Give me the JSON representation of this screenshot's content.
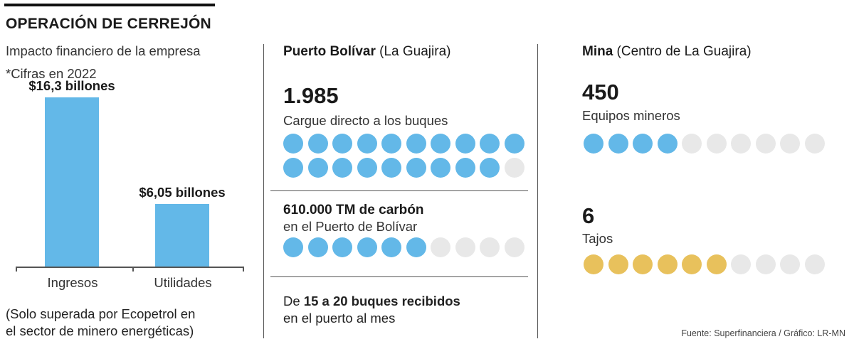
{
  "header": {
    "title": "OPERACIÓN DE CERREJÓN",
    "subtitle": "Impacto financiero de la empresa",
    "subtitle2": "*Cifras en 2022"
  },
  "chart_data": {
    "type": "bar",
    "categories": [
      "Ingresos",
      "Utilidades"
    ],
    "values": [
      16.3,
      6.05
    ],
    "data_labels": [
      "$16,3 billones",
      "$6,05 billones"
    ],
    "units": "billones",
    "title": "",
    "xlabel": "",
    "ylabel": "",
    "ylim": [
      0,
      17.5
    ],
    "grid": false,
    "bar_color": "#63b8e8",
    "note": "(Solo superada por Ecopetrol en el sector de minero energéticas)"
  },
  "note": {
    "line1": "(Solo superada por Ecopetrol en",
    "line2": "el sector de minero energéticas)"
  },
  "puerto": {
    "heading_bold": "Puerto Bolívar",
    "heading_rest": " (La Guajira)",
    "stat1_value": "1.985",
    "stat1_label": "Cargue directo a los buques",
    "stat1_dots_total": 20,
    "stat1_dots_filled": 19,
    "stat2_value": "610.000 TM de carbón",
    "stat2_label": "en el Puerto de Bolívar",
    "stat2_dots_total": 10,
    "stat2_dots_filled": 6,
    "stat3_prefix": "De ",
    "stat3_bold": "15 a 20 buques recibidos",
    "stat3_line2": "en el puerto al mes"
  },
  "mina": {
    "heading_bold": "Mina",
    "heading_rest": " (Centro de La Guajira)",
    "stat1_value": "450",
    "stat1_label": "Equipos mineros",
    "stat1_dots_total": 10,
    "stat1_dots_filled": 4,
    "stat2_value": "6",
    "stat2_label": "Tajos",
    "stat2_dots_total": 10,
    "stat2_dots_filled": 6
  },
  "colors": {
    "blue": "#63b8e8",
    "gold": "#e8c15c",
    "empty": "#e8e8e8"
  },
  "source": "Fuente: Superfinanciera  / Gráfico: LR-MN"
}
